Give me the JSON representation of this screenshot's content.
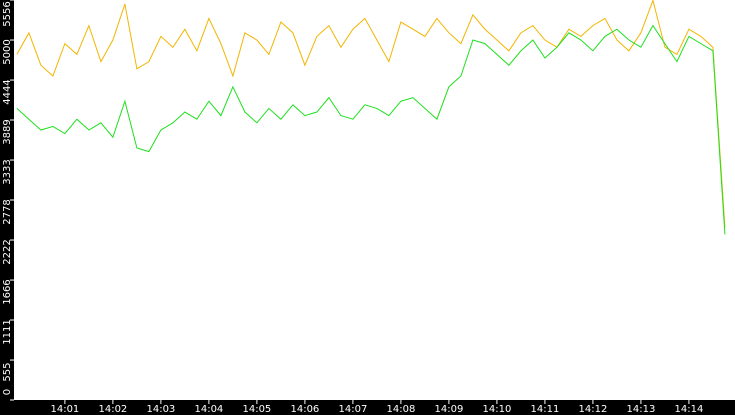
{
  "chart_data": {
    "type": "line",
    "x": [
      0,
      0.25,
      0.5,
      0.75,
      1,
      1.25,
      1.5,
      1.75,
      2,
      2.25,
      2.5,
      2.75,
      3,
      3.25,
      3.5,
      3.75,
      4,
      4.25,
      4.5,
      4.75,
      5,
      5.25,
      5.5,
      5.75,
      6,
      6.25,
      6.5,
      6.75,
      7,
      7.25,
      7.5,
      7.75,
      8,
      8.25,
      8.5,
      8.75,
      9,
      9.25,
      9.5,
      9.75,
      10,
      10.25,
      10.5,
      10.75,
      11,
      11.25,
      11.5,
      11.75,
      12,
      12.25,
      12.5,
      12.75,
      13,
      13.25,
      13.5,
      13.75,
      14,
      14.25,
      14.5,
      14.75
    ],
    "series": [
      {
        "color": "#f2b500",
        "values": [
          4800,
          5100,
          4650,
          4500,
          4950,
          4800,
          5200,
          4700,
          5000,
          5500,
          4600,
          4700,
          5050,
          4900,
          5150,
          4850,
          5300,
          4950,
          4500,
          5100,
          5000,
          4800,
          5250,
          5100,
          4650,
          5050,
          5200,
          4900,
          5150,
          5300,
          5000,
          4700,
          5250,
          5150,
          5050,
          5300,
          5100,
          4950,
          5350,
          5150,
          5000,
          4850,
          5100,
          5200,
          5000,
          4900,
          5150,
          5050,
          5200,
          5300,
          5000,
          4850,
          5100,
          5550,
          4900,
          4800,
          5150,
          5050,
          4900,
          2400
        ]
      },
      {
        "color": "#1ee01e",
        "values": [
          4050,
          3900,
          3750,
          3800,
          3700,
          3900,
          3750,
          3850,
          3650,
          4150,
          3500,
          3450,
          3750,
          3850,
          4000,
          3900,
          4150,
          3950,
          4350,
          4000,
          3850,
          4050,
          3900,
          4100,
          3950,
          4000,
          4200,
          3950,
          3900,
          4100,
          4050,
          3950,
          4150,
          4200,
          4050,
          3900,
          4350,
          4500,
          5000,
          4950,
          4800,
          4650,
          4850,
          5000,
          4750,
          4900,
          5100,
          5000,
          4850,
          5050,
          5150,
          5000,
          4900,
          5200,
          4950,
          4700,
          5050,
          4950,
          4850,
          2300
        ]
      }
    ],
    "xlim": [
      -0.06,
      14.96
    ],
    "xticks": [
      {
        "value": 1,
        "label": "14:01"
      },
      {
        "value": 2,
        "label": "14:02"
      },
      {
        "value": 3,
        "label": "14:03"
      },
      {
        "value": 4,
        "label": "14:04"
      },
      {
        "value": 5,
        "label": "14:05"
      },
      {
        "value": 6,
        "label": "14:06"
      },
      {
        "value": 7,
        "label": "14:07"
      },
      {
        "value": 8,
        "label": "14:08"
      },
      {
        "value": 9,
        "label": "14:09"
      },
      {
        "value": 10,
        "label": "14:10"
      },
      {
        "value": 11,
        "label": "14:11"
      },
      {
        "value": 12,
        "label": "14:12"
      },
      {
        "value": 13,
        "label": "14:13"
      },
      {
        "value": 14,
        "label": "14:14"
      }
    ],
    "ylim": [
      0,
      5556
    ],
    "yticks": [
      0,
      555,
      1111,
      1666,
      2222,
      2778,
      3333,
      3889,
      4444,
      5000,
      5556
    ],
    "grid": false
  }
}
